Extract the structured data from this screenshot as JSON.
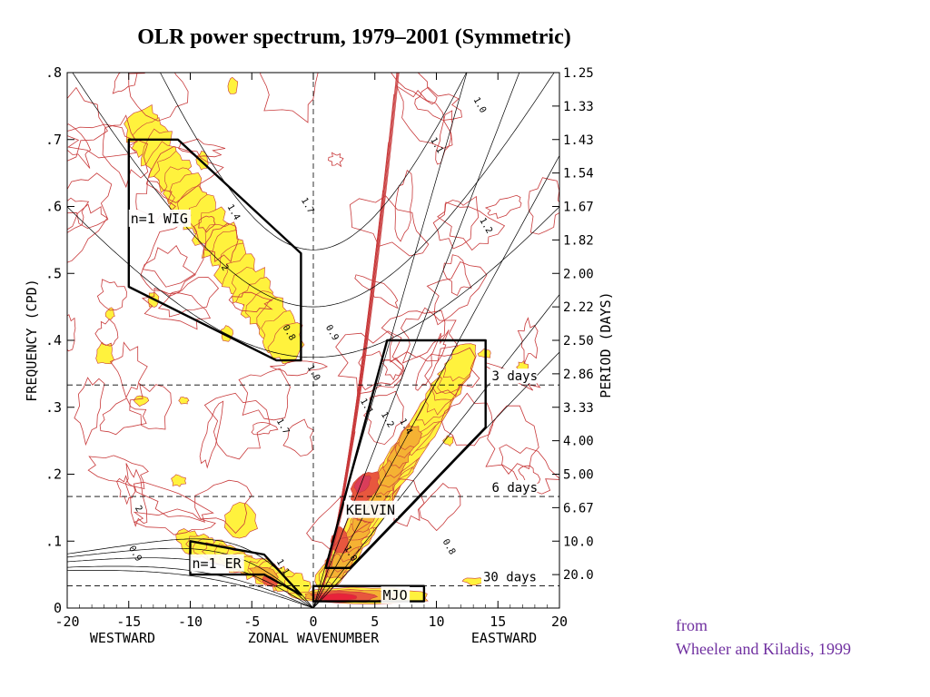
{
  "title": "OLR power spectrum, 1979–2001 (Symmetric)",
  "credit": {
    "line1": "from",
    "line2": "Wheeler and Kiladis, 1999"
  },
  "colors": {
    "contour": "#c8393a",
    "fill_low": "#fff23d",
    "fill_mid": "#f5b233",
    "fill_high": "#e8573e",
    "fill_peak": "#d93d5a",
    "credit_text": "#7030a0",
    "curve": "#000000"
  },
  "chart_data": {
    "type": "heatmap",
    "title": "OLR power spectrum, 1979–2001 (Symmetric)",
    "xlabel": "ZONAL WAVENUMBER",
    "ylabel": "FREQUENCY (CPD)",
    "ylabel_right": "PERIOD (DAYS)",
    "x_direction_labels": [
      "WESTWARD",
      "EASTWARD"
    ],
    "xlim": [
      -20,
      20
    ],
    "ylim": [
      0,
      0.8
    ],
    "x_ticks": [
      "-20",
      "-15",
      "-10",
      "-5",
      "0",
      "5",
      "10",
      "15",
      "20"
    ],
    "x_tick_values": [
      -20,
      -15,
      -10,
      -5,
      0,
      5,
      10,
      15,
      20
    ],
    "y_ticks": [
      "0",
      ".1",
      ".2",
      ".3",
      ".4",
      ".5",
      ".6",
      ".7",
      ".8"
    ],
    "y_tick_values": [
      0,
      0.1,
      0.2,
      0.3,
      0.4,
      0.5,
      0.6,
      0.7,
      0.8
    ],
    "period_ticks": [
      "1.25",
      "1.33",
      "1.43",
      "1.54",
      "1.67",
      "1.82",
      "2.00",
      "2.22",
      "2.50",
      "2.86",
      "3.33",
      "4.00",
      "5.00",
      "6.67",
      "10.0",
      "20.0"
    ],
    "period_tick_freq": [
      0.8,
      0.75,
      0.7,
      0.65,
      0.6,
      0.55,
      0.5,
      0.45,
      0.4,
      0.35,
      0.3,
      0.25,
      0.2,
      0.15,
      0.1,
      0.05
    ],
    "reference_lines": [
      {
        "label": "3 days",
        "frequency": 0.3333
      },
      {
        "label": "6 days",
        "frequency": 0.1667
      },
      {
        "label": "30 days",
        "frequency": 0.0333
      }
    ],
    "regions": [
      {
        "label": "n=1 WIG",
        "polygon": [
          [
            -15,
            0.7
          ],
          [
            -11,
            0.7
          ],
          [
            -1,
            0.53
          ],
          [
            -1,
            0.37
          ],
          [
            -3,
            0.37
          ],
          [
            -15,
            0.48
          ]
        ]
      },
      {
        "label": "KELVIN",
        "polygon": [
          [
            1,
            0.06
          ],
          [
            6,
            0.4
          ],
          [
            14,
            0.4
          ],
          [
            14,
            0.27
          ],
          [
            3,
            0.06
          ]
        ]
      },
      {
        "label": "n=1 ER",
        "polygon": [
          [
            -10,
            0.1
          ],
          [
            -10,
            0.05
          ],
          [
            -4,
            0.05
          ],
          [
            -1,
            0.02
          ],
          [
            -4,
            0.08
          ]
        ]
      },
      {
        "label": "MJO",
        "polygon": [
          [
            0,
            0.033
          ],
          [
            9,
            0.033
          ],
          [
            9,
            0.01
          ],
          [
            0,
            0.01
          ]
        ]
      }
    ],
    "contour_labels": [
      "1.0",
      "1.1",
      "1.2",
      "1.4",
      "1.7",
      "2",
      "0.8",
      "0.9"
    ],
    "power_maxima": [
      {
        "name": "Kelvin peak",
        "x": 4,
        "y": 0.18,
        "level": 2.0
      },
      {
        "name": "MJO peak",
        "x": 2,
        "y": 0.02,
        "level": 2.0
      },
      {
        "name": "WIG band",
        "x": -8,
        "y": 0.52,
        "level": 1.1
      },
      {
        "name": "ER band",
        "x": -4,
        "y": 0.05,
        "level": 1.2
      }
    ]
  }
}
